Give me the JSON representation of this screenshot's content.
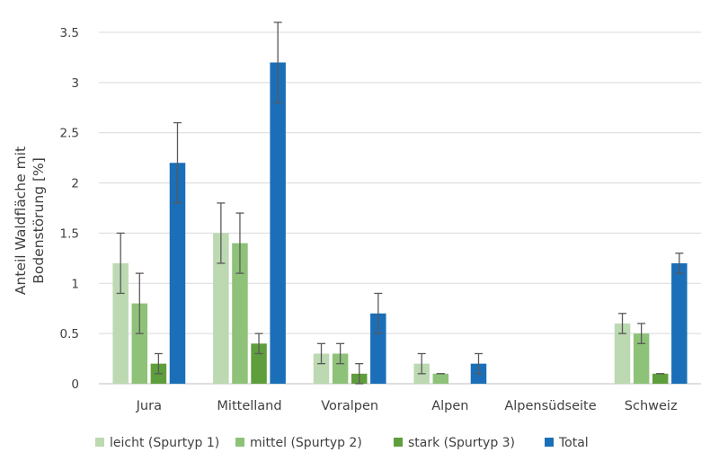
{
  "chart_data": {
    "type": "bar",
    "ylabel_lines": [
      "Anteil Waldfläche mit",
      "Bodenstörung [%]"
    ],
    "xlabel": "",
    "ylim": [
      0,
      3.5
    ],
    "ytick_step": 0.5,
    "yticks": [
      "0",
      "0.5",
      "1",
      "1.5",
      "2",
      "2.5",
      "3",
      "3.5"
    ],
    "categories": [
      "Jura",
      "Mittelland",
      "Voralpen",
      "Alpen",
      "Alpensüdseite",
      "Schweiz"
    ],
    "series": [
      {
        "name": "leicht (Spurtyp 1)",
        "color": "#bcd9b1",
        "values": [
          1.2,
          1.5,
          0.3,
          0.2,
          null,
          0.6
        ],
        "err_low": [
          0.9,
          1.2,
          0.2,
          0.1,
          null,
          0.5
        ],
        "err_high": [
          1.5,
          1.8,
          0.4,
          0.3,
          null,
          0.7
        ]
      },
      {
        "name": "mittel (Spurtyp 2)",
        "color": "#8ec279",
        "values": [
          0.8,
          1.4,
          0.3,
          0.1,
          null,
          0.5
        ],
        "err_low": [
          0.5,
          1.1,
          0.2,
          0.1,
          null,
          0.4
        ],
        "err_high": [
          1.1,
          1.7,
          0.4,
          0.1,
          null,
          0.6
        ]
      },
      {
        "name": "stark (Spurtyp 3)",
        "color": "#5f9e3d",
        "values": [
          0.2,
          0.4,
          0.1,
          null,
          null,
          0.1
        ],
        "err_low": [
          0.1,
          0.3,
          0.0,
          null,
          null,
          0.1
        ],
        "err_high": [
          0.3,
          0.5,
          0.2,
          null,
          null,
          0.1
        ]
      },
      {
        "name": "Total",
        "color": "#1b6fb8",
        "values": [
          2.2,
          3.2,
          0.7,
          0.2,
          null,
          1.2
        ],
        "err_low": [
          1.8,
          2.8,
          0.5,
          0.1,
          null,
          1.1
        ],
        "err_high": [
          2.6,
          3.6,
          0.9,
          0.3,
          null,
          1.3
        ]
      }
    ],
    "grid": true,
    "legend_position": "bottom"
  }
}
